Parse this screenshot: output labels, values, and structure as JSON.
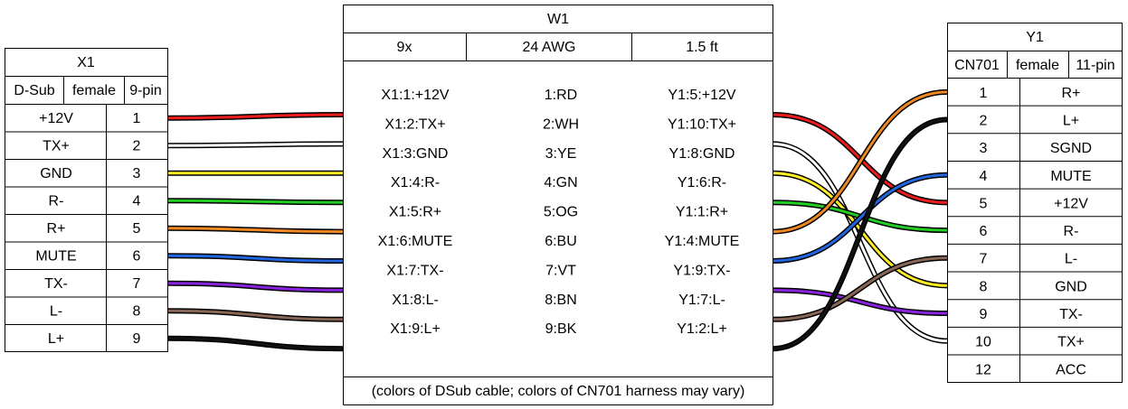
{
  "connector_x1": {
    "title": "X1",
    "attrs": [
      "D-Sub",
      "female",
      "9-pin"
    ],
    "pins": [
      {
        "label": "+12V",
        "num": "1"
      },
      {
        "label": "TX+",
        "num": "2"
      },
      {
        "label": "GND",
        "num": "3"
      },
      {
        "label": "R-",
        "num": "4"
      },
      {
        "label": "R+",
        "num": "5"
      },
      {
        "label": "MUTE",
        "num": "6"
      },
      {
        "label": "TX-",
        "num": "7"
      },
      {
        "label": "L-",
        "num": "8"
      },
      {
        "label": "L+",
        "num": "9"
      }
    ]
  },
  "cable_w1": {
    "title": "W1",
    "attrs": [
      "9x",
      "24 AWG",
      "1.5 ft"
    ],
    "wires": [
      {
        "from": "X1:1:+12V",
        "color": "1:RD",
        "to": "Y1:5:+12V",
        "hex": "#ee1c1c"
      },
      {
        "from": "X1:2:TX+",
        "color": "2:WH",
        "to": "Y1:10:TX+",
        "hex": "#ffffff"
      },
      {
        "from": "X1:3:GND",
        "color": "3:YE",
        "to": "Y1:8:GND",
        "hex": "#ffee22"
      },
      {
        "from": "X1:4:R-",
        "color": "4:GN",
        "to": "Y1:6:R-",
        "hex": "#22cc22"
      },
      {
        "from": "X1:5:R+",
        "color": "5:OG",
        "to": "Y1:1:R+",
        "hex": "#ee8822"
      },
      {
        "from": "X1:6:MUTE",
        "color": "6:BU",
        "to": "Y1:4:MUTE",
        "hex": "#2266dd"
      },
      {
        "from": "X1:7:TX-",
        "color": "7:VT",
        "to": "Y1:9:TX-",
        "hex": "#8822dd"
      },
      {
        "from": "X1:8:L-",
        "color": "8:BN",
        "to": "Y1:7:L-",
        "hex": "#886655"
      },
      {
        "from": "X1:9:L+",
        "color": "9:BK",
        "to": "Y1:2:L+",
        "hex": "#111111"
      }
    ],
    "note": "(colors of DSub cable; colors of CN701 harness may vary)"
  },
  "connector_y1": {
    "title": "Y1",
    "attrs": [
      "CN701",
      "female",
      "11-pin"
    ],
    "pins": [
      {
        "num": "1",
        "label": "R+"
      },
      {
        "num": "2",
        "label": "L+"
      },
      {
        "num": "3",
        "label": "SGND"
      },
      {
        "num": "4",
        "label": "MUTE"
      },
      {
        "num": "5",
        "label": "+12V"
      },
      {
        "num": "6",
        "label": "R-"
      },
      {
        "num": "7",
        "label": "L-"
      },
      {
        "num": "8",
        "label": "GND"
      },
      {
        "num": "9",
        "label": "TX-"
      },
      {
        "num": "10",
        "label": "TX+"
      },
      {
        "num": "12",
        "label": "ACC"
      }
    ]
  }
}
